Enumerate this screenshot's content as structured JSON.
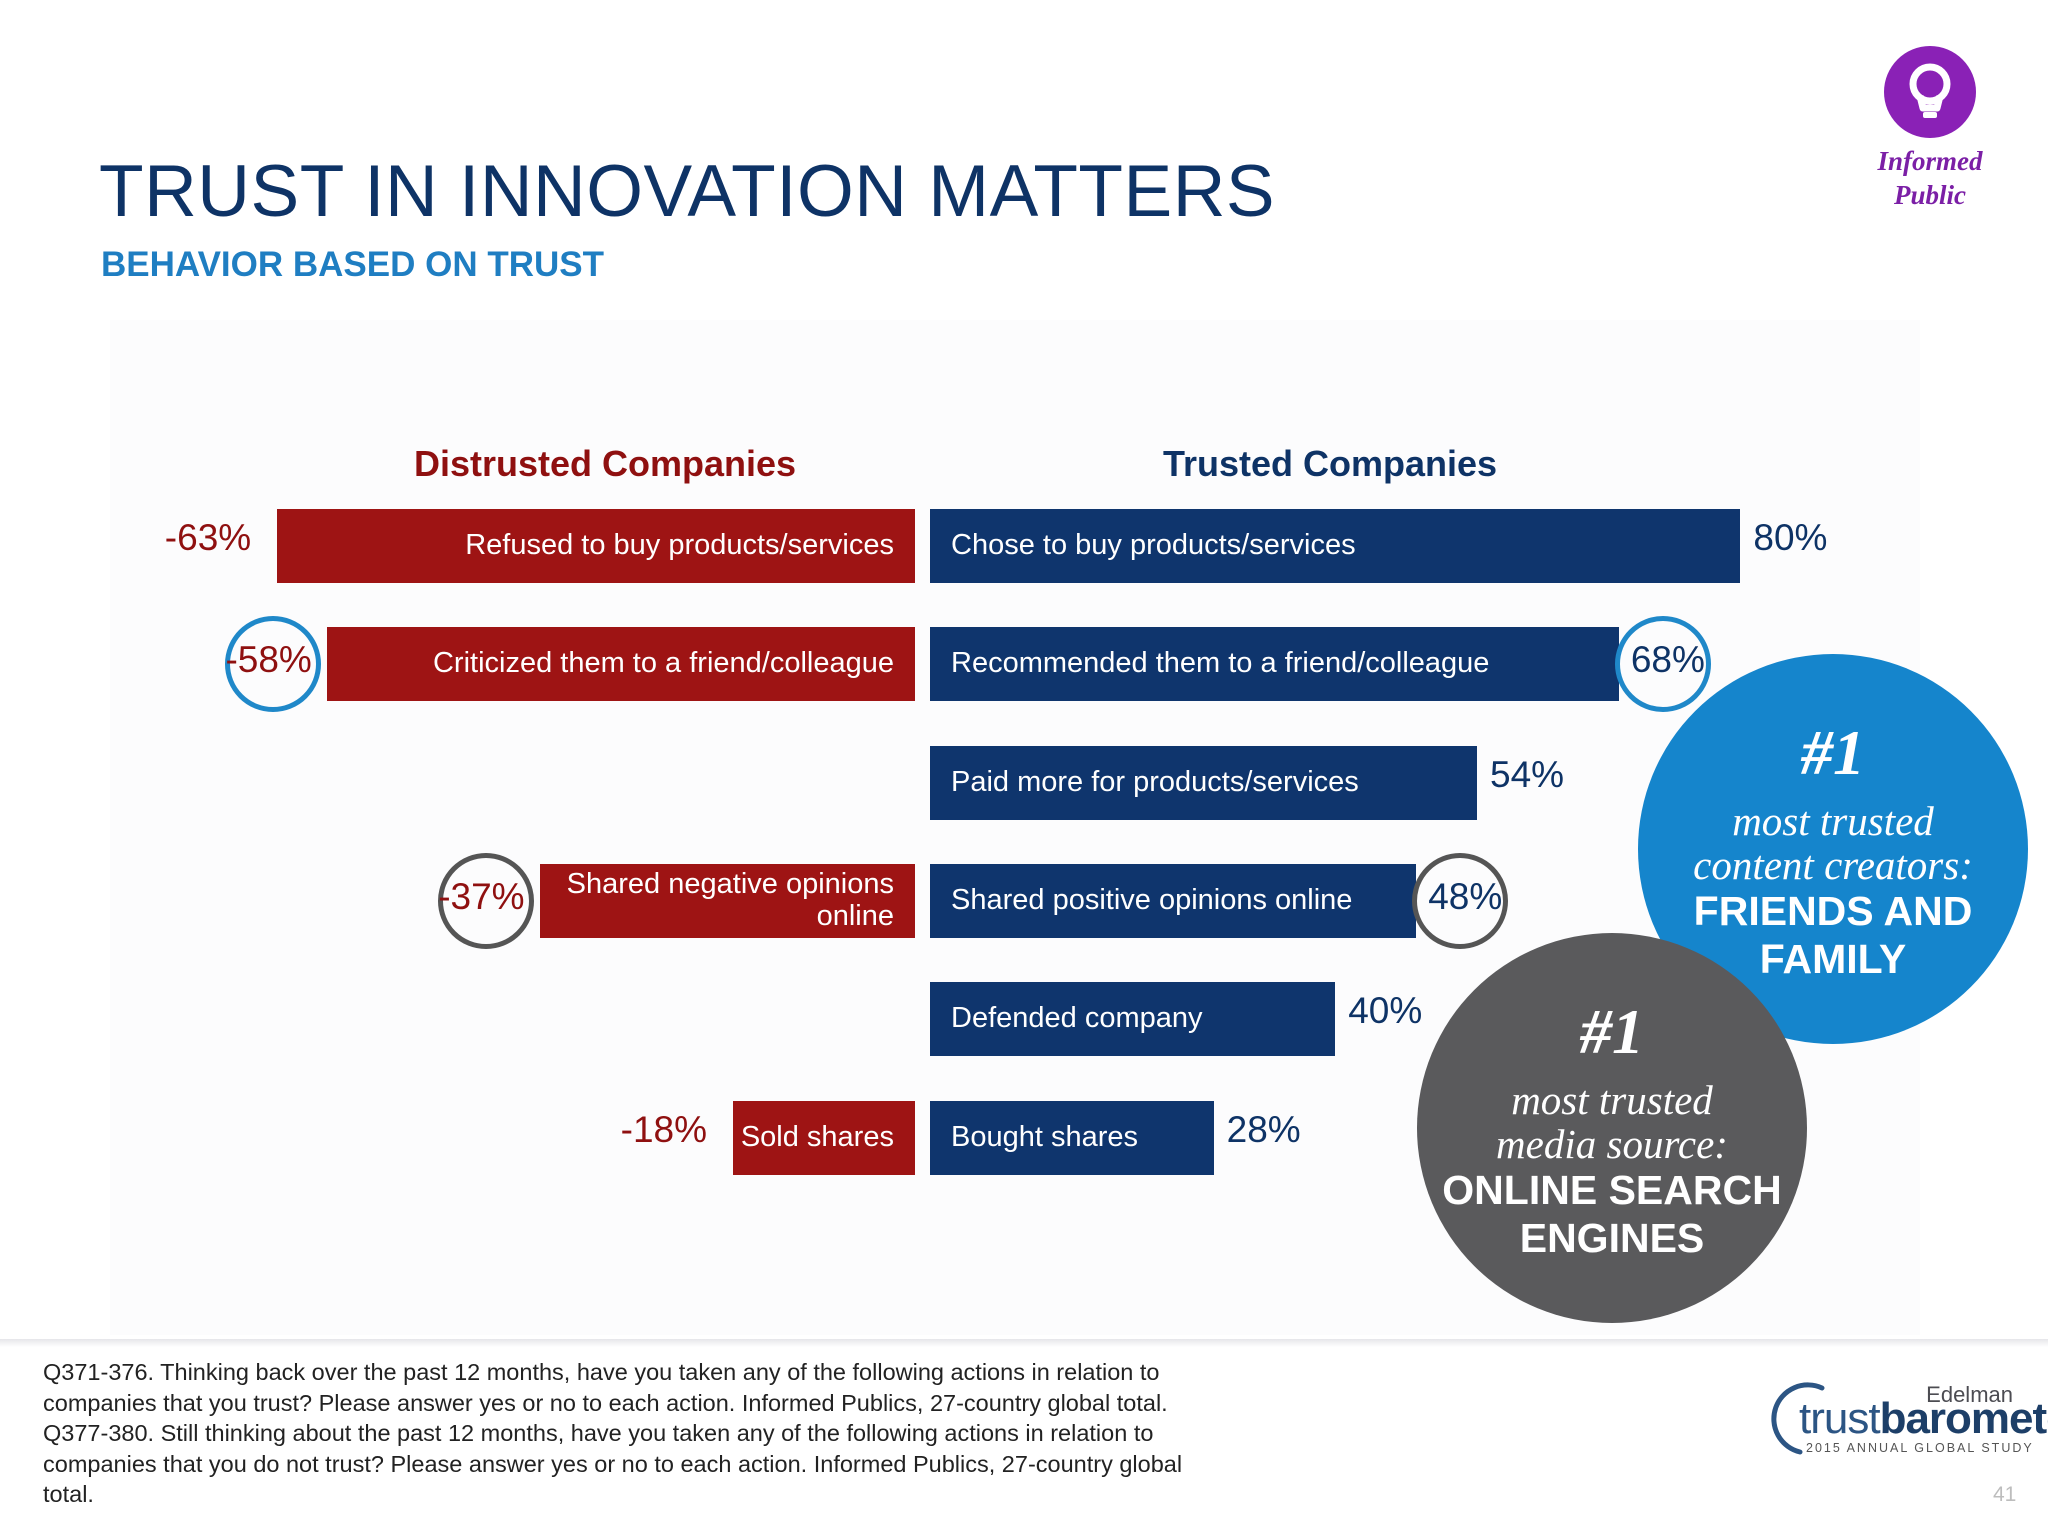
{
  "title": "TRUST IN INNOVATION MATTERS",
  "subtitle": "BEHAVIOR BASED ON TRUST",
  "badge": {
    "label_line1": "Informed",
    "label_line2": "Public",
    "icon": "lightbulb-icon",
    "color": "#8a21b6"
  },
  "chart_data": {
    "type": "bar",
    "orientation": "horizontal-diverging",
    "left_heading": "Distrusted Companies",
    "right_heading": "Trusted Companies",
    "colors": {
      "distrusted": "#9e1414",
      "trusted": "#0f356d",
      "highlight_blue": "#1f88c9",
      "highlight_gray": "#555555"
    },
    "distrusted": [
      {
        "row": 0,
        "label": "Refused to buy products/services",
        "value": -63,
        "value_label": "-63%"
      },
      {
        "row": 1,
        "label": "Criticized them to a friend/colleague",
        "value": -58,
        "value_label": "-58%",
        "highlight": "blue"
      },
      {
        "row": 3,
        "label": "Shared negative opinions online",
        "value": -37,
        "value_label": "-37%",
        "highlight": "gray"
      },
      {
        "row": 5,
        "label": "Sold shares",
        "value": -18,
        "value_label": "-18%"
      }
    ],
    "trusted": [
      {
        "row": 0,
        "label": "Chose to buy products/services",
        "value": 80,
        "value_label": "80%"
      },
      {
        "row": 1,
        "label": "Recommended them to a friend/colleague",
        "value": 68,
        "value_label": "68%",
        "highlight": "blue"
      },
      {
        "row": 2,
        "label": "Paid more for products/services",
        "value": 54,
        "value_label": "54%"
      },
      {
        "row": 3,
        "label": "Shared positive opinions online",
        "value": 48,
        "value_label": "48%",
        "highlight": "gray"
      },
      {
        "row": 4,
        "label": "Defended company",
        "value": 40,
        "value_label": "40%"
      },
      {
        "row": 5,
        "label": "Bought shares",
        "value": 28,
        "value_label": "28%"
      }
    ]
  },
  "callouts": {
    "blue": {
      "rank": "#1",
      "desc_line1": "most trusted",
      "desc_line2": "content creators:",
      "emph_line1": "FRIENDS AND",
      "emph_line2": "FAMILY",
      "color": "#1585cc"
    },
    "gray": {
      "rank": "#1",
      "desc_line1": "most trusted",
      "desc_line2": "media source:",
      "emph_line1": "ONLINE SEARCH",
      "emph_line2": "ENGINES",
      "color": "#5a5a5c"
    }
  },
  "footnote": [
    "Q371-376. Thinking back over the past 12 months, have you taken any of the following actions in relation to",
    "companies that you trust? Please answer yes or no to each action. Informed Publics, 27-country global total.",
    "Q377-380. Still thinking about the past 12 months, have you taken any of the following actions in relation to",
    "companies that you do not trust? Please answer yes or no to each action. Informed Publics, 27-country global",
    "total."
  ],
  "brand": {
    "company": "Edelman",
    "name_light": "trust",
    "name_bold": "barometer",
    "study": "2015 ANNUAL GLOBAL STUDY"
  },
  "page_number": "41"
}
